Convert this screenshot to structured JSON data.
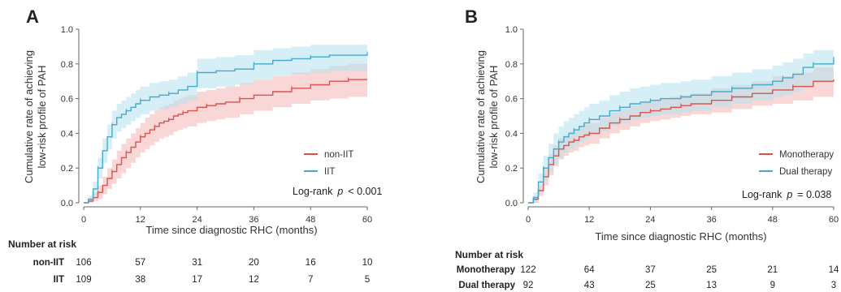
{
  "chart_data": [
    {
      "type": "line",
      "panel_label": "A",
      "ylabel_lines": [
        "Cumulative rate of achieving",
        "low-risk profile of PAH"
      ],
      "xlabel": "Time since diagnostic RHC (months)",
      "xlim": [
        0,
        60
      ],
      "ylim": [
        0,
        1.0
      ],
      "xticks": [
        0,
        12,
        24,
        36,
        48,
        60
      ],
      "yticks": [
        "0.0",
        "0.2",
        "0.4",
        "0.6",
        "0.8",
        "1.0"
      ],
      "ytick_values": [
        0,
        0.2,
        0.4,
        0.6,
        0.8,
        1.0
      ],
      "grid": false,
      "legend_position": "bottom-right",
      "annotation": {
        "prefix": "Log-rank",
        "stat": "p",
        "rest": "< 0.001"
      },
      "series": [
        {
          "name": "non-IIT",
          "color": "#d9534f",
          "band_color": "#f4b6b6",
          "x": [
            0,
            1,
            2,
            3,
            4,
            5,
            6,
            7,
            8,
            9,
            10,
            11,
            12,
            13,
            14,
            15,
            16,
            17,
            18,
            19,
            20,
            21,
            22,
            24,
            26,
            28,
            30,
            33,
            36,
            40,
            44,
            48,
            52,
            56,
            60
          ],
          "y": [
            0.0,
            0.01,
            0.03,
            0.06,
            0.1,
            0.14,
            0.18,
            0.22,
            0.26,
            0.29,
            0.32,
            0.35,
            0.38,
            0.4,
            0.42,
            0.44,
            0.46,
            0.47,
            0.48,
            0.5,
            0.51,
            0.52,
            0.53,
            0.55,
            0.56,
            0.57,
            0.58,
            0.6,
            0.62,
            0.64,
            0.66,
            0.68,
            0.7,
            0.71,
            0.71
          ],
          "lower": [
            0.0,
            0.0,
            0.01,
            0.02,
            0.05,
            0.08,
            0.11,
            0.14,
            0.17,
            0.2,
            0.23,
            0.26,
            0.29,
            0.31,
            0.33,
            0.35,
            0.37,
            0.38,
            0.39,
            0.41,
            0.42,
            0.43,
            0.44,
            0.46,
            0.47,
            0.48,
            0.49,
            0.51,
            0.53,
            0.55,
            0.57,
            0.59,
            0.6,
            0.61,
            0.61
          ],
          "upper": [
            0.0,
            0.03,
            0.06,
            0.1,
            0.15,
            0.2,
            0.25,
            0.3,
            0.34,
            0.37,
            0.4,
            0.43,
            0.46,
            0.49,
            0.51,
            0.53,
            0.55,
            0.56,
            0.57,
            0.59,
            0.6,
            0.61,
            0.62,
            0.64,
            0.65,
            0.66,
            0.67,
            0.69,
            0.71,
            0.73,
            0.75,
            0.77,
            0.79,
            0.8,
            0.8
          ]
        },
        {
          "name": "IIT",
          "color": "#46a9c9",
          "band_color": "#b5e1ee",
          "x": [
            0,
            1,
            2,
            3,
            4,
            5,
            6,
            7,
            8,
            9,
            10,
            11,
            12,
            14,
            16,
            18,
            20,
            22,
            24,
            28,
            32,
            36,
            40,
            44,
            48,
            52,
            56,
            60
          ],
          "y": [
            0.0,
            0.02,
            0.08,
            0.2,
            0.3,
            0.38,
            0.45,
            0.49,
            0.51,
            0.53,
            0.55,
            0.57,
            0.59,
            0.61,
            0.62,
            0.63,
            0.65,
            0.67,
            0.75,
            0.76,
            0.77,
            0.8,
            0.82,
            0.83,
            0.84,
            0.85,
            0.85,
            0.86
          ],
          "lower": [
            0.0,
            0.0,
            0.04,
            0.14,
            0.23,
            0.31,
            0.37,
            0.41,
            0.43,
            0.45,
            0.47,
            0.49,
            0.51,
            0.53,
            0.54,
            0.55,
            0.57,
            0.59,
            0.66,
            0.67,
            0.68,
            0.71,
            0.73,
            0.74,
            0.75,
            0.76,
            0.76,
            0.77
          ],
          "upper": [
            0.0,
            0.04,
            0.12,
            0.26,
            0.37,
            0.45,
            0.53,
            0.57,
            0.59,
            0.61,
            0.63,
            0.65,
            0.67,
            0.69,
            0.7,
            0.71,
            0.73,
            0.75,
            0.83,
            0.84,
            0.85,
            0.88,
            0.89,
            0.9,
            0.91,
            0.91,
            0.91,
            0.92
          ]
        }
      ],
      "risk_table": {
        "title": "Number at risk",
        "rows": [
          {
            "label": "non-IIT",
            "values": [
              "106",
              "57",
              "31",
              "20",
              "16",
              "10"
            ]
          },
          {
            "label": "IIT",
            "values": [
              "109",
              "38",
              "17",
              "12",
              "7",
              "5"
            ]
          }
        ]
      }
    },
    {
      "type": "line",
      "panel_label": "B",
      "ylabel_lines": [
        "Cumulative rate of achieving",
        "low-risk profile of PAH"
      ],
      "xlabel": "Time since diagnostic RHC (months)",
      "xlim": [
        0,
        60
      ],
      "ylim": [
        0,
        1.0
      ],
      "xticks": [
        0,
        12,
        24,
        36,
        48,
        60
      ],
      "yticks": [
        "0.0",
        "0.2",
        "0.4",
        "0.6",
        "0.8",
        "1.0"
      ],
      "ytick_values": [
        0,
        0.2,
        0.4,
        0.6,
        0.8,
        1.0
      ],
      "grid": false,
      "legend_position": "bottom-right",
      "annotation": {
        "prefix": "Log-rank",
        "stat": "p",
        "rest": "= 0.038"
      },
      "series": [
        {
          "name": "Monotherapy",
          "color": "#d9534f",
          "band_color": "#f4b6b6",
          "x": [
            0,
            1,
            2,
            3,
            4,
            5,
            6,
            7,
            8,
            9,
            10,
            11,
            12,
            14,
            16,
            18,
            20,
            22,
            24,
            26,
            28,
            30,
            32,
            36,
            40,
            44,
            48,
            52,
            56,
            60
          ],
          "y": [
            0.0,
            0.02,
            0.07,
            0.15,
            0.22,
            0.27,
            0.31,
            0.33,
            0.35,
            0.36,
            0.38,
            0.39,
            0.4,
            0.43,
            0.46,
            0.48,
            0.5,
            0.52,
            0.53,
            0.54,
            0.55,
            0.56,
            0.57,
            0.59,
            0.61,
            0.63,
            0.65,
            0.67,
            0.7,
            0.71
          ],
          "lower": [
            0.0,
            0.0,
            0.04,
            0.1,
            0.16,
            0.21,
            0.25,
            0.27,
            0.29,
            0.3,
            0.32,
            0.33,
            0.34,
            0.37,
            0.4,
            0.42,
            0.44,
            0.46,
            0.47,
            0.48,
            0.49,
            0.5,
            0.51,
            0.52,
            0.54,
            0.56,
            0.57,
            0.59,
            0.61,
            0.62
          ],
          "upper": [
            0.0,
            0.04,
            0.1,
            0.2,
            0.28,
            0.33,
            0.37,
            0.39,
            0.41,
            0.42,
            0.44,
            0.45,
            0.46,
            0.49,
            0.52,
            0.54,
            0.56,
            0.58,
            0.59,
            0.6,
            0.61,
            0.62,
            0.63,
            0.66,
            0.68,
            0.7,
            0.73,
            0.75,
            0.78,
            0.79
          ]
        },
        {
          "name": "Dual therapy",
          "color": "#46a9c9",
          "band_color": "#b5e1ee",
          "x": [
            0,
            1,
            2,
            3,
            4,
            5,
            6,
            7,
            8,
            9,
            10,
            11,
            12,
            14,
            16,
            18,
            20,
            22,
            24,
            26,
            28,
            30,
            32,
            36,
            40,
            44,
            48,
            50,
            52,
            54,
            56,
            60
          ],
          "y": [
            0.0,
            0.03,
            0.12,
            0.2,
            0.26,
            0.31,
            0.35,
            0.38,
            0.4,
            0.42,
            0.44,
            0.46,
            0.48,
            0.5,
            0.53,
            0.55,
            0.57,
            0.58,
            0.59,
            0.6,
            0.6,
            0.61,
            0.62,
            0.64,
            0.66,
            0.68,
            0.7,
            0.72,
            0.74,
            0.78,
            0.8,
            0.84
          ],
          "lower": [
            0.0,
            0.0,
            0.07,
            0.13,
            0.18,
            0.22,
            0.26,
            0.29,
            0.31,
            0.33,
            0.35,
            0.37,
            0.39,
            0.41,
            0.44,
            0.46,
            0.48,
            0.49,
            0.5,
            0.51,
            0.51,
            0.52,
            0.53,
            0.55,
            0.57,
            0.59,
            0.61,
            0.62,
            0.64,
            0.67,
            0.69,
            0.72
          ],
          "upper": [
            0.0,
            0.06,
            0.17,
            0.27,
            0.34,
            0.4,
            0.44,
            0.47,
            0.49,
            0.51,
            0.53,
            0.55,
            0.57,
            0.59,
            0.62,
            0.64,
            0.66,
            0.67,
            0.68,
            0.69,
            0.69,
            0.7,
            0.71,
            0.73,
            0.75,
            0.77,
            0.79,
            0.81,
            0.83,
            0.86,
            0.88,
            0.9
          ]
        }
      ],
      "risk_table": {
        "title": "Number at risk",
        "rows": [
          {
            "label": "Monotherapy",
            "values": [
              "122",
              "64",
              "37",
              "25",
              "21",
              "14"
            ]
          },
          {
            "label": "Dual therapy",
            "values": [
              "92",
              "43",
              "25",
              "13",
              "9",
              "3"
            ]
          }
        ]
      }
    }
  ]
}
